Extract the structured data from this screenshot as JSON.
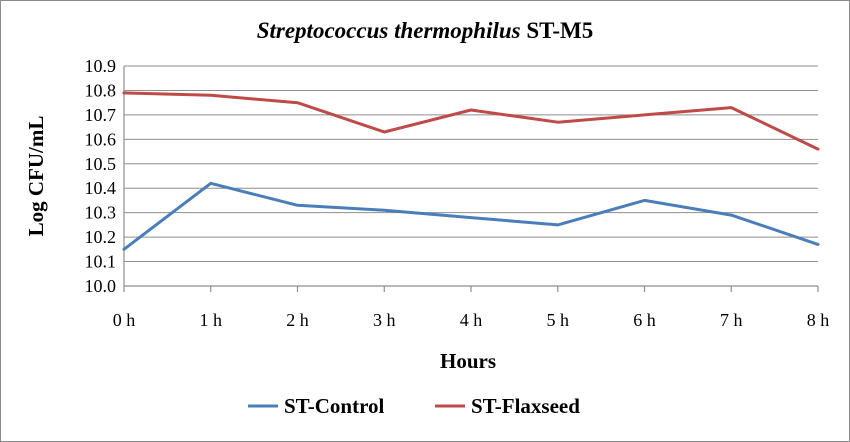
{
  "chart_data": {
    "type": "line",
    "title_italic": "Streptococcus thermophilus",
    "title_rest": " ST-M5",
    "xlabel": "Hours",
    "ylabel": "Log CFU/mL",
    "categories": [
      "0 h",
      "1 h",
      "2 h",
      "3 h",
      "4 h",
      "5 h",
      "6 h",
      "7 h",
      "8 h"
    ],
    "ylim": [
      10.0,
      10.9
    ],
    "yticks": [
      "10.0",
      "10.1",
      "10.2",
      "10.3",
      "10.4",
      "10.5",
      "10.6",
      "10.7",
      "10.8",
      "10.9"
    ],
    "grid": true,
    "legend_position": "bottom",
    "series": [
      {
        "name": "ST-Control",
        "color": "#4a7ebb",
        "values": [
          10.15,
          10.42,
          10.33,
          10.31,
          10.28,
          10.25,
          10.35,
          10.29,
          10.17
        ]
      },
      {
        "name": "ST-Flaxseed",
        "color": "#be4b48",
        "values": [
          10.79,
          10.78,
          10.75,
          10.63,
          10.72,
          10.67,
          10.7,
          10.73,
          10.56
        ]
      }
    ]
  }
}
